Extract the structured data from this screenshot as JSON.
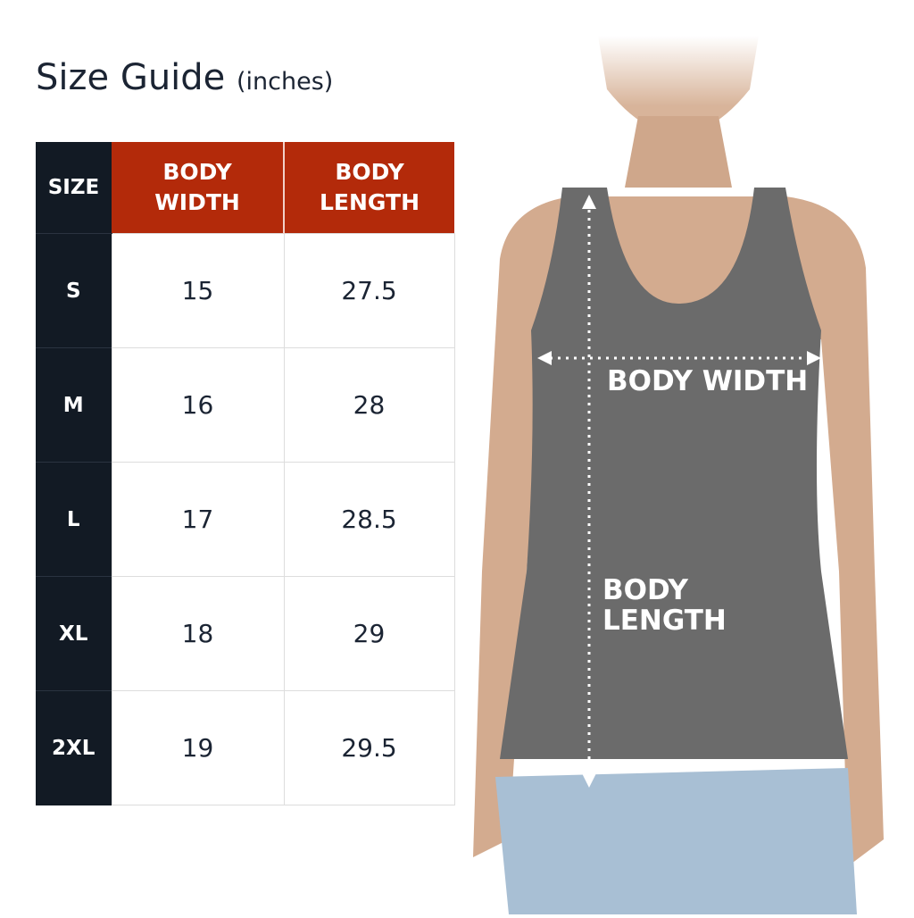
{
  "title": {
    "main": "Size Guide",
    "unit": "(inches)"
  },
  "table": {
    "headers": {
      "size": "SIZE",
      "width_line1": "BODY",
      "width_line2": "WIDTH",
      "length_line1": "BODY",
      "length_line2": "LENGTH"
    },
    "rows": [
      {
        "size": "S",
        "width": "15",
        "length": "27.5"
      },
      {
        "size": "M",
        "width": "16",
        "length": "28"
      },
      {
        "size": "L",
        "width": "17",
        "length": "28.5"
      },
      {
        "size": "XL",
        "width": "18",
        "length": "29"
      },
      {
        "size": "2XL",
        "width": "19",
        "length": "29.5"
      }
    ]
  },
  "figure": {
    "width_label": "BODY WIDTH",
    "length_line1": "BODY",
    "length_line2": "LENGTH"
  },
  "colors": {
    "header_accent": "#b32a0a",
    "size_column": "#121a24",
    "text": "#1b2433",
    "shirt": "#6b6b6b"
  }
}
